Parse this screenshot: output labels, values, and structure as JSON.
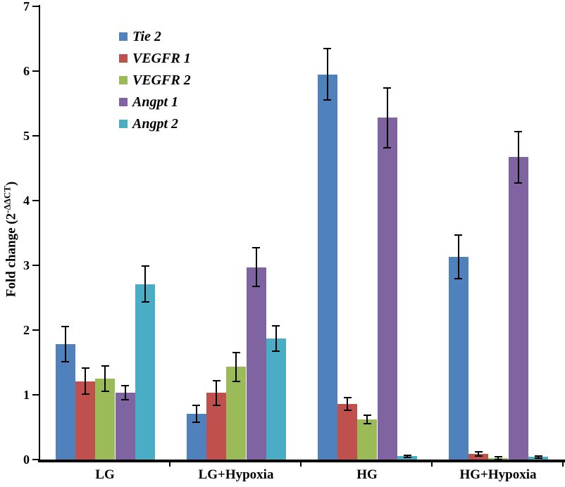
{
  "chart": {
    "ylabel": {
      "prefix": "Fold change (2",
      "superscript": "-ΔΔCT",
      "suffix": ")",
      "full_text": "Fold change (2-ΔΔCT)"
    }
  },
  "chart_data": {
    "type": "bar",
    "title": "",
    "xlabel": "",
    "ylabel": "Fold change (2^-ΔΔCT)",
    "ylim": [
      0,
      7
    ],
    "yticks": [
      0,
      1,
      2,
      3,
      4,
      5,
      6,
      7
    ],
    "grid": false,
    "error_bars": true,
    "legend_position": "top-left-inside",
    "axis_color": "#000000",
    "background_color": "#FFFFFF",
    "categories": [
      "LG",
      "LG+Hypoxia",
      "HG",
      "HG+Hypoxia"
    ],
    "series": [
      {
        "name": "Tie 2",
        "color": "#4F81BD",
        "values": [
          1.78,
          0.71,
          5.95,
          3.13
        ],
        "errors": [
          0.27,
          0.13,
          0.4,
          0.34
        ]
      },
      {
        "name": "VEGFR 1",
        "color": "#C0504D",
        "values": [
          1.21,
          1.03,
          0.86,
          0.09
        ],
        "errors": [
          0.2,
          0.19,
          0.1,
          0.03
        ]
      },
      {
        "name": "VEGFR 2",
        "color": "#9BBB59",
        "values": [
          1.25,
          1.43,
          0.62,
          0.02
        ],
        "errors": [
          0.2,
          0.22,
          0.07,
          0.02
        ]
      },
      {
        "name": "Angpt 1",
        "color": "#8064A2",
        "values": [
          1.03,
          2.97,
          5.28,
          4.67
        ],
        "errors": [
          0.11,
          0.3,
          0.46,
          0.4
        ]
      },
      {
        "name": "Angpt 2",
        "color": "#4BACC6",
        "values": [
          2.71,
          1.87,
          0.05,
          0.04
        ],
        "errors": [
          0.28,
          0.2,
          0.02,
          0.015
        ]
      }
    ]
  }
}
